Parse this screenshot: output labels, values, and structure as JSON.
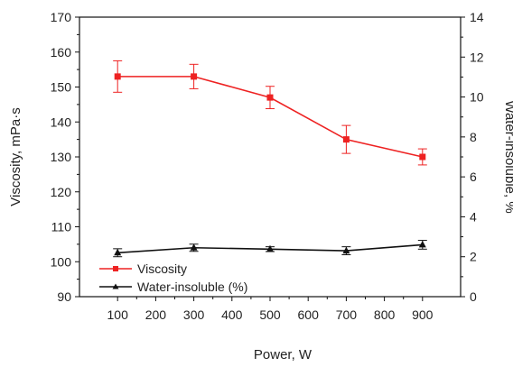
{
  "chart_data": {
    "type": "line",
    "xlabel": "Power, W",
    "ylabel_left": "Viscosity, mPa·s",
    "ylabel_right": "Water-insoluble, %",
    "x": [
      100,
      300,
      500,
      700,
      900
    ],
    "xlim": [
      0,
      1000
    ],
    "xticks": [
      100,
      200,
      300,
      400,
      500,
      600,
      700,
      800,
      900
    ],
    "ylim_left": [
      90,
      170
    ],
    "yticks_left": [
      90,
      100,
      110,
      120,
      130,
      140,
      150,
      160,
      170
    ],
    "ylim_right": [
      0,
      14
    ],
    "yticks_right": [
      0,
      2,
      4,
      6,
      8,
      10,
      12,
      14
    ],
    "grid": false,
    "legend_position": "bottom-left",
    "series": [
      {
        "name": "Viscosity",
        "axis": "left",
        "color": "#ee2222",
        "marker": "square",
        "values": [
          153,
          153,
          147,
          135,
          130
        ],
        "errors": [
          4.5,
          3.5,
          3.2,
          4.0,
          2.3
        ]
      },
      {
        "name": "Water-insoluble (%)",
        "axis": "right",
        "color": "#111111",
        "marker": "triangle",
        "values": [
          2.2,
          2.45,
          2.38,
          2.3,
          2.6
        ],
        "errors": [
          0.2,
          0.18,
          0.12,
          0.2,
          0.22
        ]
      }
    ]
  }
}
